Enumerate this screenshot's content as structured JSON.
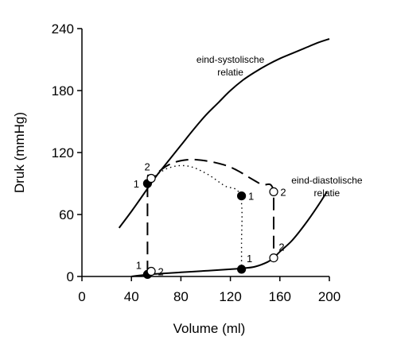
{
  "chart_data": {
    "type": "line",
    "title": "",
    "xlabel": "Volume (ml)",
    "ylabel": "Druk (mmHg)",
    "xlim": [
      0,
      200
    ],
    "ylim": [
      0,
      240
    ],
    "x_ticks": [
      0,
      40,
      80,
      120,
      160,
      200
    ],
    "y_ticks": [
      0,
      60,
      120,
      180,
      240
    ],
    "grid": false,
    "legend": "none",
    "annotations": [
      {
        "text_lines": [
          "eind-systolische",
          "relatie"
        ],
        "anchor": [
          120,
          207
        ]
      },
      {
        "text_lines": [
          "eind-diastolische",
          "relatie"
        ],
        "anchor": [
          198,
          90
        ]
      }
    ],
    "series": [
      {
        "style": "solid",
        "x": [
          30,
          40,
          50,
          60,
          70,
          80,
          90,
          100,
          110,
          120,
          130,
          140,
          150,
          160,
          170,
          180,
          190,
          200
        ],
        "y": [
          47,
          63,
          80,
          97,
          112,
          127,
          142,
          156,
          168,
          180,
          190,
          198,
          205,
          211,
          216,
          221,
          226,
          230
        ]
      },
      {
        "style": "solid",
        "x": [
          40,
          50,
          60,
          80,
          100,
          120,
          130,
          140,
          150,
          155,
          160,
          170,
          180,
          190,
          198
        ],
        "y": [
          0,
          1.5,
          2.5,
          4,
          5.5,
          7,
          8,
          9.5,
          14,
          18,
          24,
          35,
          50,
          67,
          82
        ]
      },
      {
        "style": "dashed",
        "x": [
          53,
          53,
          56,
          70,
          85,
          100,
          115,
          125,
          135,
          145,
          155,
          155
        ],
        "y": [
          3,
          90,
          95,
          108,
          113,
          112,
          108,
          103,
          96,
          89,
          82,
          18
        ]
      },
      {
        "style": "dotted",
        "x": [
          56,
          70,
          85,
          100,
          115,
          128,
          129,
          129
        ],
        "y": [
          95,
          105,
          107,
          100,
          88,
          78,
          30,
          8
        ]
      }
    ],
    "points": [
      {
        "label": "1",
        "x": 53,
        "y": 90,
        "filled": true,
        "label_pos": "left"
      },
      {
        "label": "2",
        "x": 56,
        "y": 95,
        "filled": false,
        "label_pos": "above"
      },
      {
        "label": "1",
        "x": 129,
        "y": 78,
        "filled": true,
        "label_pos": "right"
      },
      {
        "label": "2",
        "x": 155,
        "y": 82,
        "filled": false,
        "label_pos": "right"
      },
      {
        "label": "1",
        "x": 53,
        "y": 2,
        "filled": true,
        "label_pos": "above-left"
      },
      {
        "label": "2",
        "x": 56,
        "y": 5,
        "filled": false,
        "label_pos": "right"
      },
      {
        "label": "1",
        "x": 129,
        "y": 7,
        "filled": true,
        "label_pos": "above-right"
      },
      {
        "label": "2",
        "x": 155,
        "y": 18,
        "filled": false,
        "label_pos": "above-right"
      }
    ]
  }
}
